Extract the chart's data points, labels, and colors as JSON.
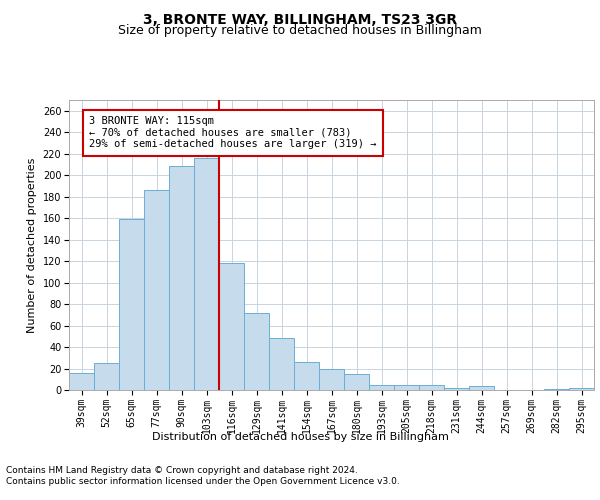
{
  "title1": "3, BRONTE WAY, BILLINGHAM, TS23 3GR",
  "title2": "Size of property relative to detached houses in Billingham",
  "xlabel": "Distribution of detached houses by size in Billingham",
  "ylabel": "Number of detached properties",
  "categories": [
    "39sqm",
    "52sqm",
    "65sqm",
    "77sqm",
    "90sqm",
    "103sqm",
    "116sqm",
    "129sqm",
    "141sqm",
    "154sqm",
    "167sqm",
    "180sqm",
    "193sqm",
    "205sqm",
    "218sqm",
    "231sqm",
    "244sqm",
    "257sqm",
    "269sqm",
    "282sqm",
    "295sqm"
  ],
  "bar_heights": [
    16,
    25,
    159,
    186,
    209,
    216,
    118,
    72,
    48,
    26,
    20,
    15,
    5,
    5,
    5,
    2,
    4,
    0,
    0,
    1,
    2
  ],
  "bar_color": "#c6dcec",
  "bar_edgecolor": "#6aaed6",
  "vline_color": "#cc0000",
  "annotation_text": "3 BRONTE WAY: 115sqm\n← 70% of detached houses are smaller (783)\n29% of semi-detached houses are larger (319) →",
  "annotation_box_color": "#ffffff",
  "annotation_box_edgecolor": "#cc0000",
  "ylim": [
    0,
    270
  ],
  "yticks": [
    0,
    20,
    40,
    60,
    80,
    100,
    120,
    140,
    160,
    180,
    200,
    220,
    240,
    260
  ],
  "footer1": "Contains HM Land Registry data © Crown copyright and database right 2024.",
  "footer2": "Contains public sector information licensed under the Open Government Licence v3.0.",
  "bg_color": "#ffffff",
  "grid_color": "#c8d4e0",
  "title1_fontsize": 10,
  "title2_fontsize": 9,
  "axis_label_fontsize": 8,
  "tick_fontsize": 7,
  "annotation_fontsize": 7.5,
  "footer_fontsize": 6.5,
  "xlabel_fontsize": 8
}
